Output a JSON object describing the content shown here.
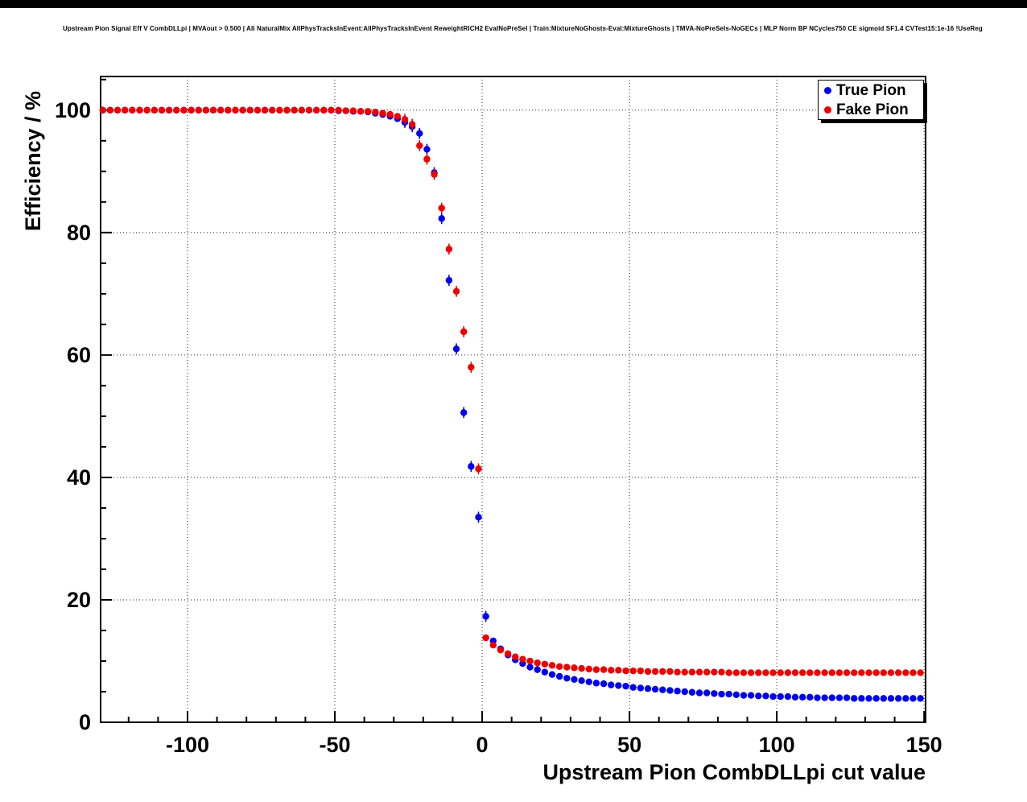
{
  "chart_data": {
    "type": "scatter",
    "title": "Upstream Pion Signal Eff V CombDLLpi | MVAout > 0.500 | All NaturalMix AllPhysTracksInEvent:AllPhysTracksInEvent ReweightRICH2 EvalNoPreSel | Train:MixtureNoGhosts-Eval:MixtureGhosts | TMVA-NoPreSels-NoGECs | MLP Norm BP NCycles750 CE sigmoid SF1.4 CVTest15:1e-16 !UseReg",
    "xlabel": "Upstream Pion CombDLLpi cut value",
    "ylabel": "Efficiency / %",
    "xlim": [
      -129.5,
      150.5
    ],
    "ylim": [
      0,
      105.5
    ],
    "xticks": [
      -100,
      -50,
      0,
      50,
      100,
      150
    ],
    "yticks": [
      0,
      20,
      40,
      60,
      80,
      100
    ],
    "x_minor_step": 10,
    "y_minor_step": 5,
    "grid": true,
    "legend_position": "top-right",
    "x": [
      -128.75,
      -126.25,
      -123.75,
      -121.25,
      -118.75,
      -116.25,
      -113.75,
      -111.25,
      -108.75,
      -106.25,
      -103.75,
      -101.25,
      -98.75,
      -96.25,
      -93.75,
      -91.25,
      -88.75,
      -86.25,
      -83.75,
      -81.25,
      -78.75,
      -76.25,
      -73.75,
      -71.25,
      -68.75,
      -66.25,
      -63.75,
      -61.25,
      -58.75,
      -56.25,
      -53.75,
      -51.25,
      -48.75,
      -46.25,
      -43.75,
      -41.25,
      -38.75,
      -36.25,
      -33.75,
      -31.25,
      -28.75,
      -26.25,
      -23.75,
      -21.25,
      -18.75,
      -16.25,
      -13.75,
      -11.25,
      -8.75,
      -6.25,
      -3.75,
      -1.25,
      1.25,
      3.75,
      6.25,
      8.75,
      11.25,
      13.75,
      16.25,
      18.75,
      21.25,
      23.75,
      26.25,
      28.75,
      31.25,
      33.75,
      36.25,
      38.75,
      41.25,
      43.75,
      46.25,
      48.75,
      51.25,
      53.75,
      56.25,
      58.75,
      61.25,
      63.75,
      66.25,
      68.75,
      71.25,
      73.75,
      76.25,
      78.75,
      81.25,
      83.75,
      86.25,
      88.75,
      91.25,
      93.75,
      96.25,
      98.75,
      101.25,
      103.75,
      106.25,
      108.75,
      111.25,
      113.75,
      116.25,
      118.75,
      121.25,
      123.75,
      126.25,
      128.75,
      131.25,
      133.75,
      136.25,
      138.75,
      141.25,
      143.75,
      146.25,
      148.75
    ],
    "series": [
      {
        "name": "True Pion",
        "color": "#0000ee",
        "values": [
          100,
          100,
          100,
          100,
          100,
          100,
          100,
          100,
          100,
          100,
          100,
          100,
          100,
          100,
          100,
          100,
          100,
          100,
          100,
          100,
          100,
          100,
          100,
          100,
          100,
          100,
          100,
          100,
          100,
          100,
          100,
          100,
          99.9,
          99.9,
          99.8,
          99.8,
          99.7,
          99.5,
          99.3,
          99.0,
          98.6,
          98.0,
          97.3,
          96.2,
          93.6,
          89.8,
          82.3,
          72.2,
          61.0,
          50.6,
          41.8,
          33.5,
          17.3,
          13.3,
          12.0,
          11.0,
          10.2,
          9.6,
          9.0,
          8.6,
          8.2,
          7.8,
          7.5,
          7.2,
          7.0,
          6.8,
          6.6,
          6.4,
          6.3,
          6.1,
          6.0,
          5.9,
          5.7,
          5.6,
          5.5,
          5.4,
          5.3,
          5.2,
          5.1,
          5.0,
          4.9,
          4.8,
          4.8,
          4.7,
          4.6,
          4.6,
          4.5,
          4.4,
          4.4,
          4.3,
          4.3,
          4.2,
          4.2,
          4.2,
          4.1,
          4.1,
          4.1,
          4.0,
          4.0,
          4.0,
          4.0,
          4.0,
          3.9,
          3.9,
          3.9,
          3.9,
          3.9,
          3.9,
          3.9,
          3.9,
          3.9,
          3.9
        ]
      },
      {
        "name": "Fake Pion",
        "color": "#ee0000",
        "values": [
          100,
          100,
          100,
          100,
          100,
          100,
          100,
          100,
          100,
          100,
          100,
          100,
          100,
          100,
          100,
          100,
          100,
          100,
          100,
          100,
          100,
          100,
          100,
          100,
          100,
          100,
          100,
          100,
          100,
          100,
          100,
          100,
          100,
          99.9,
          99.9,
          99.8,
          99.8,
          99.7,
          99.5,
          99.3,
          99.0,
          98.5,
          97.7,
          94.2,
          92.0,
          89.5,
          84.0,
          77.3,
          70.4,
          63.8,
          58.0,
          41.4,
          13.8,
          12.6,
          11.8,
          11.2,
          10.7,
          10.3,
          10.0,
          9.7,
          9.5,
          9.3,
          9.1,
          9.0,
          8.9,
          8.8,
          8.7,
          8.6,
          8.6,
          8.5,
          8.5,
          8.4,
          8.4,
          8.4,
          8.3,
          8.3,
          8.3,
          8.3,
          8.2,
          8.2,
          8.2,
          8.2,
          8.2,
          8.2,
          8.2,
          8.1,
          8.1,
          8.1,
          8.1,
          8.1,
          8.1,
          8.1,
          8.1,
          8.1,
          8.1,
          8.1,
          8.1,
          8.1,
          8.1,
          8.1,
          8.1,
          8.1,
          8.1,
          8.1,
          8.1,
          8.1,
          8.1,
          8.1,
          8.1,
          8.1,
          8.1,
          8.1
        ]
      }
    ]
  }
}
